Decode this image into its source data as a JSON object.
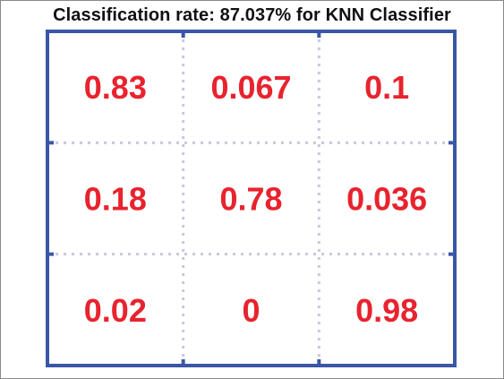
{
  "chart_data": {
    "type": "heatmap",
    "title": "Classification rate: 87.037% for KNN Classifier",
    "rows": 3,
    "cols": 3,
    "values": [
      [
        "0.83",
        "0.067",
        "0.1"
      ],
      [
        "0.18",
        "0.78",
        "0.036"
      ],
      [
        "0.02",
        "0",
        "0.98"
      ]
    ],
    "grid": true,
    "colors": {
      "value_text": "#e8232e",
      "border": "#3a57a6",
      "gridline": "#c8c8e0",
      "title": "#111111"
    }
  }
}
